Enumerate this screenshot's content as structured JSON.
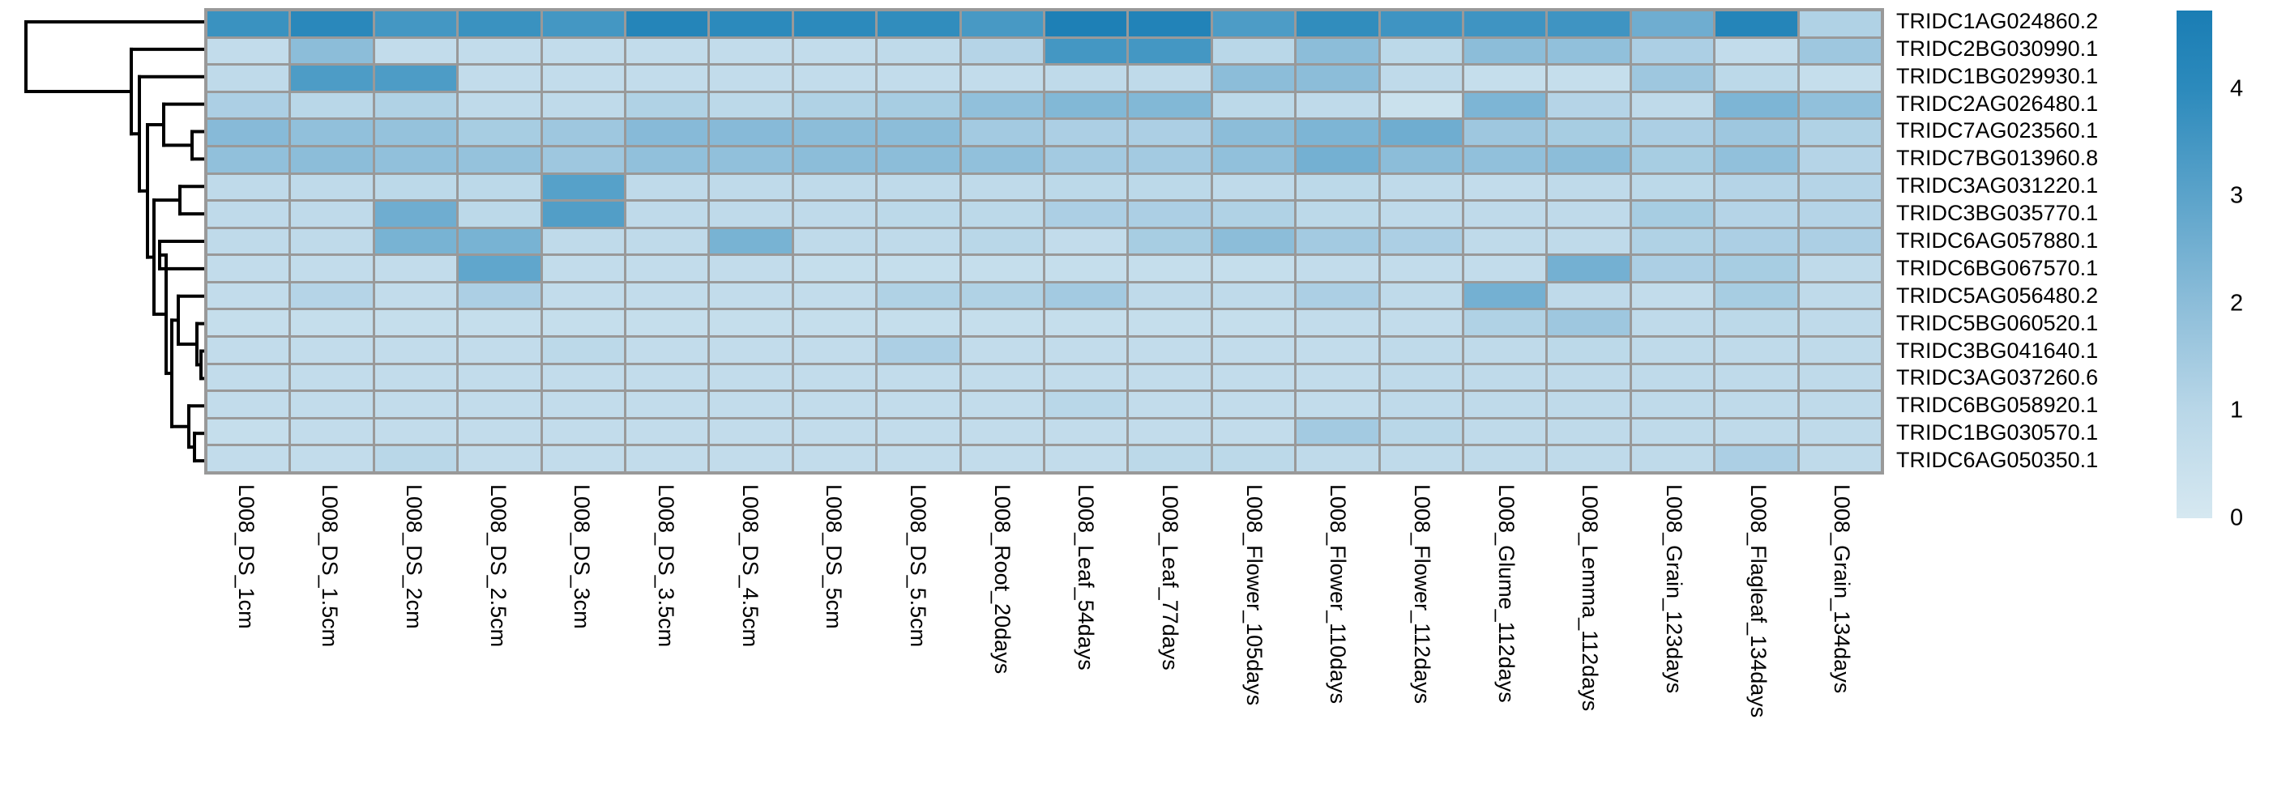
{
  "chart_data": {
    "type": "heatmap",
    "title": "",
    "rows": [
      "TRIDC1AG024860.2",
      "TRIDC2BG030990.1",
      "TRIDC1BG029930.1",
      "TRIDC2AG026480.1",
      "TRIDC7AG023560.1",
      "TRIDC7BG013960.8",
      "TRIDC3AG031220.1",
      "TRIDC3BG035770.1",
      "TRIDC6AG057880.1",
      "TRIDC6BG067570.1",
      "TRIDC5AG056480.2",
      "TRIDC5BG060520.1",
      "TRIDC3BG041640.1",
      "TRIDC3AG037260.6",
      "TRIDC6BG058920.1",
      "TRIDC1BG030570.1",
      "TRIDC6AG050350.1"
    ],
    "columns": [
      "L008_DS_1cm",
      "L008_DS_1.5cm",
      "L008_DS_2cm",
      "L008_DS_2.5cm",
      "L008_DS_3cm",
      "L008_DS_3.5cm",
      "L008_DS_4.5cm",
      "L008_DS_5cm",
      "L008_DS_5.5cm",
      "L008_Root_20days",
      "L008_Leaf_54days",
      "L008_Leaf_77days",
      "L008_Flower_105days",
      "L008_Flower_110days",
      "L008_Flower_112days",
      "L008_Glume_112days",
      "L008_Lemma_112days",
      "L008_Grain_123days",
      "L008_Flagleaf_134days",
      "L008_Grain_134days"
    ],
    "values": [
      [
        3.7,
        4.1,
        3.5,
        3.7,
        3.5,
        4.3,
        4.0,
        4.0,
        3.9,
        3.4,
        4.6,
        4.4,
        3.3,
        3.9,
        3.6,
        3.6,
        3.6,
        2.6,
        4.3,
        1.2
      ],
      [
        0.7,
        2.0,
        0.7,
        0.7,
        0.7,
        0.7,
        0.7,
        0.7,
        0.8,
        1.1,
        3.5,
        3.5,
        1.0,
        2.0,
        0.9,
        2.0,
        1.9,
        1.3,
        0.7,
        1.6
      ],
      [
        0.8,
        3.3,
        3.3,
        0.7,
        0.7,
        0.7,
        0.7,
        0.7,
        0.7,
        0.7,
        0.8,
        0.8,
        2.0,
        2.0,
        0.8,
        0.6,
        0.6,
        1.6,
        0.9,
        0.6
      ],
      [
        1.3,
        1.0,
        1.2,
        0.8,
        0.8,
        1.2,
        0.9,
        1.2,
        1.4,
        1.9,
        2.2,
        2.2,
        0.9,
        0.8,
        0.4,
        2.3,
        1.1,
        0.8,
        2.3,
        1.9
      ],
      [
        2.1,
        1.9,
        1.8,
        1.4,
        1.6,
        2.1,
        2.1,
        2.0,
        2.0,
        1.5,
        1.3,
        1.3,
        2.0,
        2.3,
        2.6,
        1.6,
        1.4,
        1.3,
        1.6,
        1.2
      ],
      [
        1.9,
        2.0,
        1.9,
        1.8,
        1.6,
        1.9,
        1.9,
        2.0,
        2.0,
        1.9,
        1.5,
        1.5,
        1.9,
        2.5,
        2.0,
        1.9,
        2.0,
        1.4,
        1.9,
        1.1
      ],
      [
        0.8,
        0.8,
        0.9,
        0.9,
        3.1,
        0.8,
        0.8,
        0.8,
        0.8,
        0.8,
        0.9,
        0.9,
        0.8,
        0.9,
        0.8,
        0.7,
        0.8,
        0.9,
        1.1,
        1.1
      ],
      [
        0.8,
        0.8,
        2.6,
        0.9,
        3.2,
        0.8,
        0.8,
        0.8,
        0.9,
        0.9,
        1.3,
        1.3,
        1.2,
        0.9,
        0.8,
        0.8,
        0.8,
        1.4,
        1.1,
        1.1
      ],
      [
        0.8,
        0.8,
        2.4,
        2.4,
        0.8,
        0.8,
        2.4,
        0.8,
        0.8,
        1.0,
        0.7,
        1.4,
        2.0,
        1.5,
        1.3,
        0.8,
        0.8,
        1.2,
        1.3,
        1.3
      ],
      [
        0.7,
        0.7,
        0.7,
        2.9,
        0.7,
        0.7,
        0.7,
        0.6,
        0.6,
        0.6,
        0.6,
        0.6,
        0.6,
        0.7,
        0.7,
        0.7,
        2.5,
        1.3,
        1.4,
        0.8
      ],
      [
        0.7,
        1.1,
        0.7,
        1.3,
        0.7,
        0.7,
        0.7,
        0.7,
        1.2,
        1.2,
        1.5,
        0.8,
        0.8,
        1.3,
        0.8,
        2.5,
        0.8,
        0.7,
        1.4,
        0.8
      ],
      [
        0.6,
        0.6,
        0.6,
        0.6,
        0.6,
        0.6,
        0.6,
        0.6,
        0.6,
        0.6,
        0.6,
        0.6,
        0.6,
        0.7,
        0.7,
        1.2,
        1.6,
        0.8,
        0.9,
        0.8
      ],
      [
        0.7,
        0.7,
        0.7,
        0.7,
        0.9,
        0.7,
        0.7,
        0.7,
        1.3,
        0.7,
        0.7,
        0.7,
        0.7,
        0.7,
        0.8,
        0.8,
        0.9,
        0.8,
        0.8,
        0.8
      ],
      [
        0.7,
        0.7,
        0.7,
        0.7,
        0.7,
        0.7,
        0.7,
        0.7,
        0.7,
        0.7,
        0.7,
        0.7,
        0.7,
        0.7,
        0.8,
        0.8,
        0.8,
        0.8,
        0.8,
        0.8
      ],
      [
        0.7,
        0.7,
        0.7,
        0.7,
        0.7,
        0.7,
        0.7,
        0.7,
        0.7,
        0.7,
        1.0,
        0.7,
        0.7,
        0.7,
        0.8,
        0.8,
        0.8,
        0.8,
        0.8,
        0.8
      ],
      [
        0.6,
        0.7,
        0.7,
        0.7,
        0.7,
        0.7,
        0.7,
        0.7,
        0.7,
        0.7,
        0.7,
        0.7,
        0.7,
        1.5,
        1.0,
        0.8,
        0.8,
        0.8,
        0.8,
        0.8
      ],
      [
        0.7,
        0.7,
        1.0,
        0.7,
        0.7,
        0.7,
        0.7,
        0.7,
        0.7,
        0.7,
        0.7,
        0.9,
        0.9,
        0.8,
        0.8,
        0.8,
        0.8,
        0.8,
        1.3,
        0.8
      ]
    ],
    "colorbar": {
      "tick_labels": [
        "4",
        "3",
        "2",
        "1",
        "0"
      ],
      "tick_values": [
        4,
        3,
        2,
        1,
        0
      ],
      "vmin": 0,
      "vmax": 4.73
    },
    "colormap_anchors": [
      [
        0,
        "#d6e8f1"
      ],
      [
        1,
        "#b9d7e8"
      ],
      [
        2,
        "#8cbdd9"
      ],
      [
        3,
        "#5ba3ca"
      ],
      [
        4,
        "#2c8abc"
      ],
      [
        4.75,
        "#1a7db4"
      ]
    ],
    "dendrogram": {
      "orientation": "left",
      "merges": [
        [
          "leaf4",
          "leaf5",
          237
        ],
        [
          "leaf3",
          "node0",
          202
        ],
        [
          "leaf6",
          "leaf7",
          222
        ],
        [
          "leaf8",
          "leaf9",
          197
        ],
        [
          "leaf15",
          "leaf16",
          240
        ],
        [
          "leaf14",
          "node4",
          233
        ],
        [
          "leaf12",
          "leaf13",
          248
        ],
        [
          "leaf11",
          "node6",
          243
        ],
        [
          "leaf10",
          "node7",
          220
        ],
        [
          "node8",
          "node5",
          212
        ],
        [
          "node3",
          "node9",
          205
        ],
        [
          "node2",
          "node10",
          190
        ],
        [
          "node1",
          "node11",
          182
        ],
        [
          "leaf2",
          "node12",
          172
        ],
        [
          "leaf1",
          "node13",
          162
        ],
        [
          "leaf0",
          "node14",
          32
        ]
      ]
    },
    "grid_on": true,
    "legend_position": "right"
  },
  "colors": {
    "background": "#ffffff",
    "cell_border": "#999999",
    "dendrogram_line": "#000000",
    "label_text": "#000000"
  }
}
